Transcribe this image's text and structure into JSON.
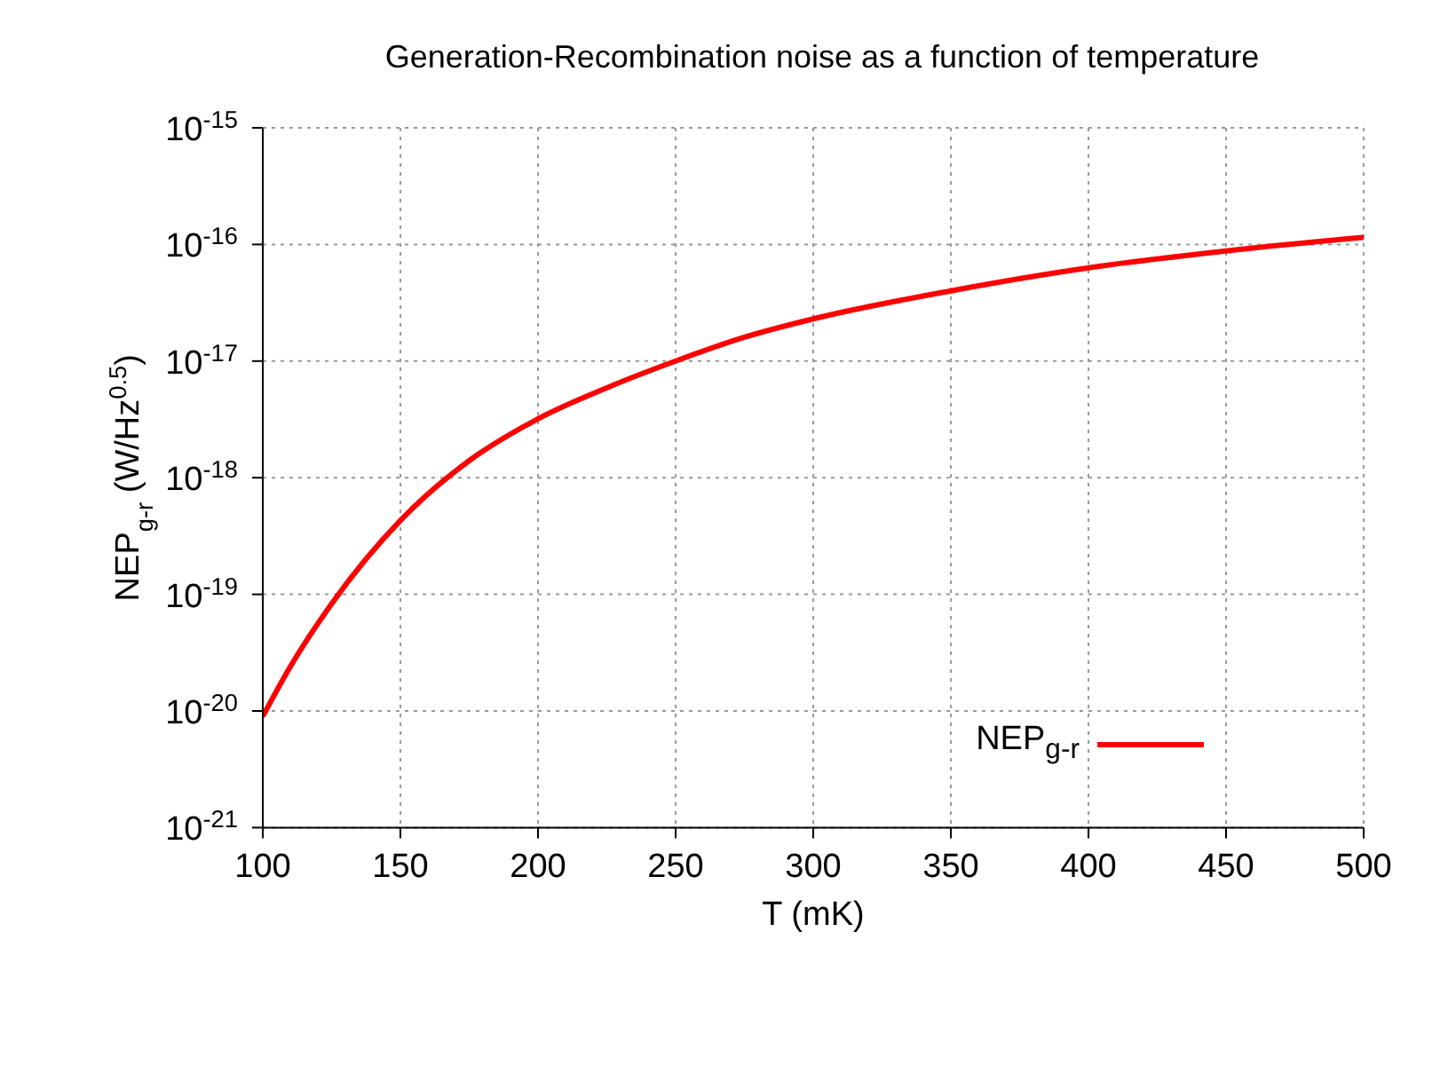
{
  "chart_data": {
    "type": "line",
    "title": "Generation-Recombination noise as a function of temperature",
    "xlabel": "T (mK)",
    "ylabel": "NEP$_{g-r}$ (W/Hz$^{0.5}$)",
    "x": [
      100,
      110,
      125,
      150,
      175,
      200,
      225,
      250,
      275,
      300,
      350,
      400,
      450,
      500
    ],
    "series": [
      {
        "name": "NEP$_{g-r}$",
        "color": "#ff0000",
        "values": [
          9e-21,
          2.4e-20,
          8.3e-20,
          4.3e-19,
          1.4e-18,
          3.2e-18,
          5.9e-18,
          1e-17,
          1.6e-17,
          2.3e-17,
          4e-17,
          6.3e-17,
          8.8e-17,
          1.15e-16
        ]
      }
    ],
    "log": "y",
    "xlim": [
      100,
      500
    ],
    "xticks": [
      100,
      150,
      200,
      250,
      300,
      350,
      400,
      450,
      500
    ],
    "ylim": [
      1e-21,
      1e-15
    ],
    "yticks": [
      {
        "value": 1e-21,
        "label": "10$^{-21}$"
      },
      {
        "value": 1e-20,
        "label": "10$^{-20}$"
      },
      {
        "value": 1e-19,
        "label": "10$^{-19}$"
      },
      {
        "value": 1e-18,
        "label": "10$^{-18}$"
      },
      {
        "value": 1e-17,
        "label": "10$^{-17}$"
      },
      {
        "value": 1e-16,
        "label": "10$^{-16}$"
      },
      {
        "value": 1e-15,
        "label": "10$^{-15}$"
      }
    ],
    "grid": true,
    "legend": "bottom right",
    "marker": "none",
    "line_style": "solid"
  }
}
